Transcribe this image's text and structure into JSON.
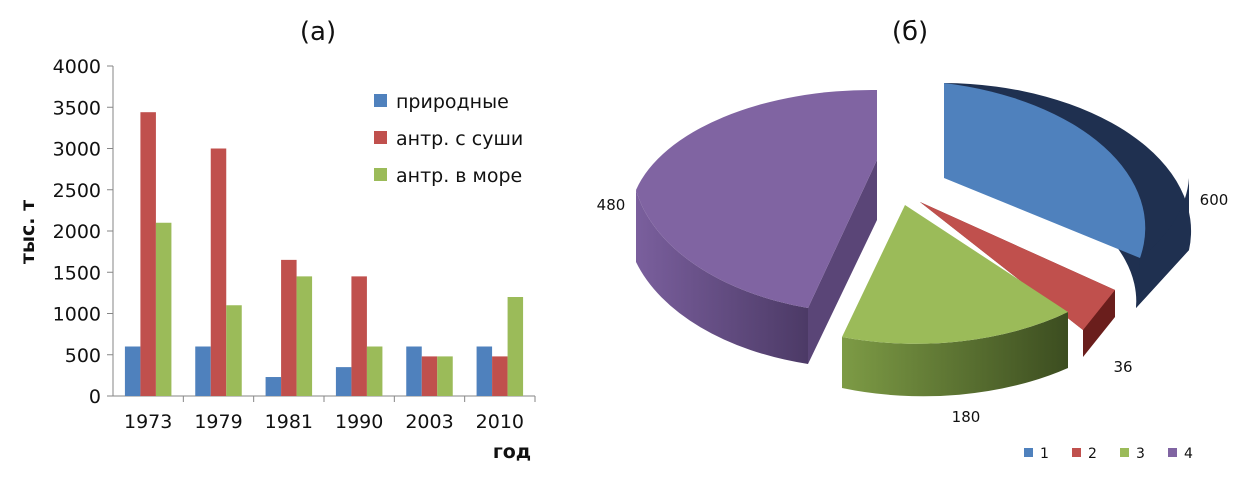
{
  "chart_data": [
    {
      "type": "bar",
      "panel_label": "(а)",
      "categories": [
        "1973",
        "1979",
        "1981",
        "1990",
        "2003",
        "2010"
      ],
      "series": [
        {
          "name": "природные",
          "color": "#4f81bd",
          "values": [
            600,
            600,
            230,
            350,
            600,
            600
          ]
        },
        {
          "name": "антр. с суши",
          "color": "#c0504d",
          "values": [
            3440,
            3000,
            1650,
            1450,
            480,
            480
          ]
        },
        {
          "name": "антр. в море",
          "color": "#9bbb59",
          "values": [
            2100,
            1100,
            1450,
            600,
            480,
            1200
          ]
        }
      ],
      "xlabel": "год",
      "ylabel": "тыс. т",
      "ylim": [
        0,
        4000
      ],
      "yticks": [
        0,
        500,
        1000,
        1500,
        2000,
        2500,
        3000,
        3500,
        4000
      ],
      "grid": false,
      "legend_position": "top-right"
    },
    {
      "type": "pie",
      "panel_label": "(б)",
      "style": "3d-exploded",
      "slices": [
        {
          "label": "1",
          "value": 600,
          "value_label": "600",
          "color": "#4f81bd",
          "side_color": "#1f3050"
        },
        {
          "label": "2",
          "value": 36,
          "value_label": "36",
          "color": "#c0504d",
          "side_color": "#6a1e1c"
        },
        {
          "label": "3",
          "value": 180,
          "value_label": "180",
          "color": "#9bbb59",
          "side_color": "#4a5e28"
        },
        {
          "label": "4",
          "value": 480,
          "value_label": "480",
          "color": "#8064a2",
          "side_color": "#5a4577"
        }
      ],
      "legend_position": "bottom-right"
    }
  ]
}
